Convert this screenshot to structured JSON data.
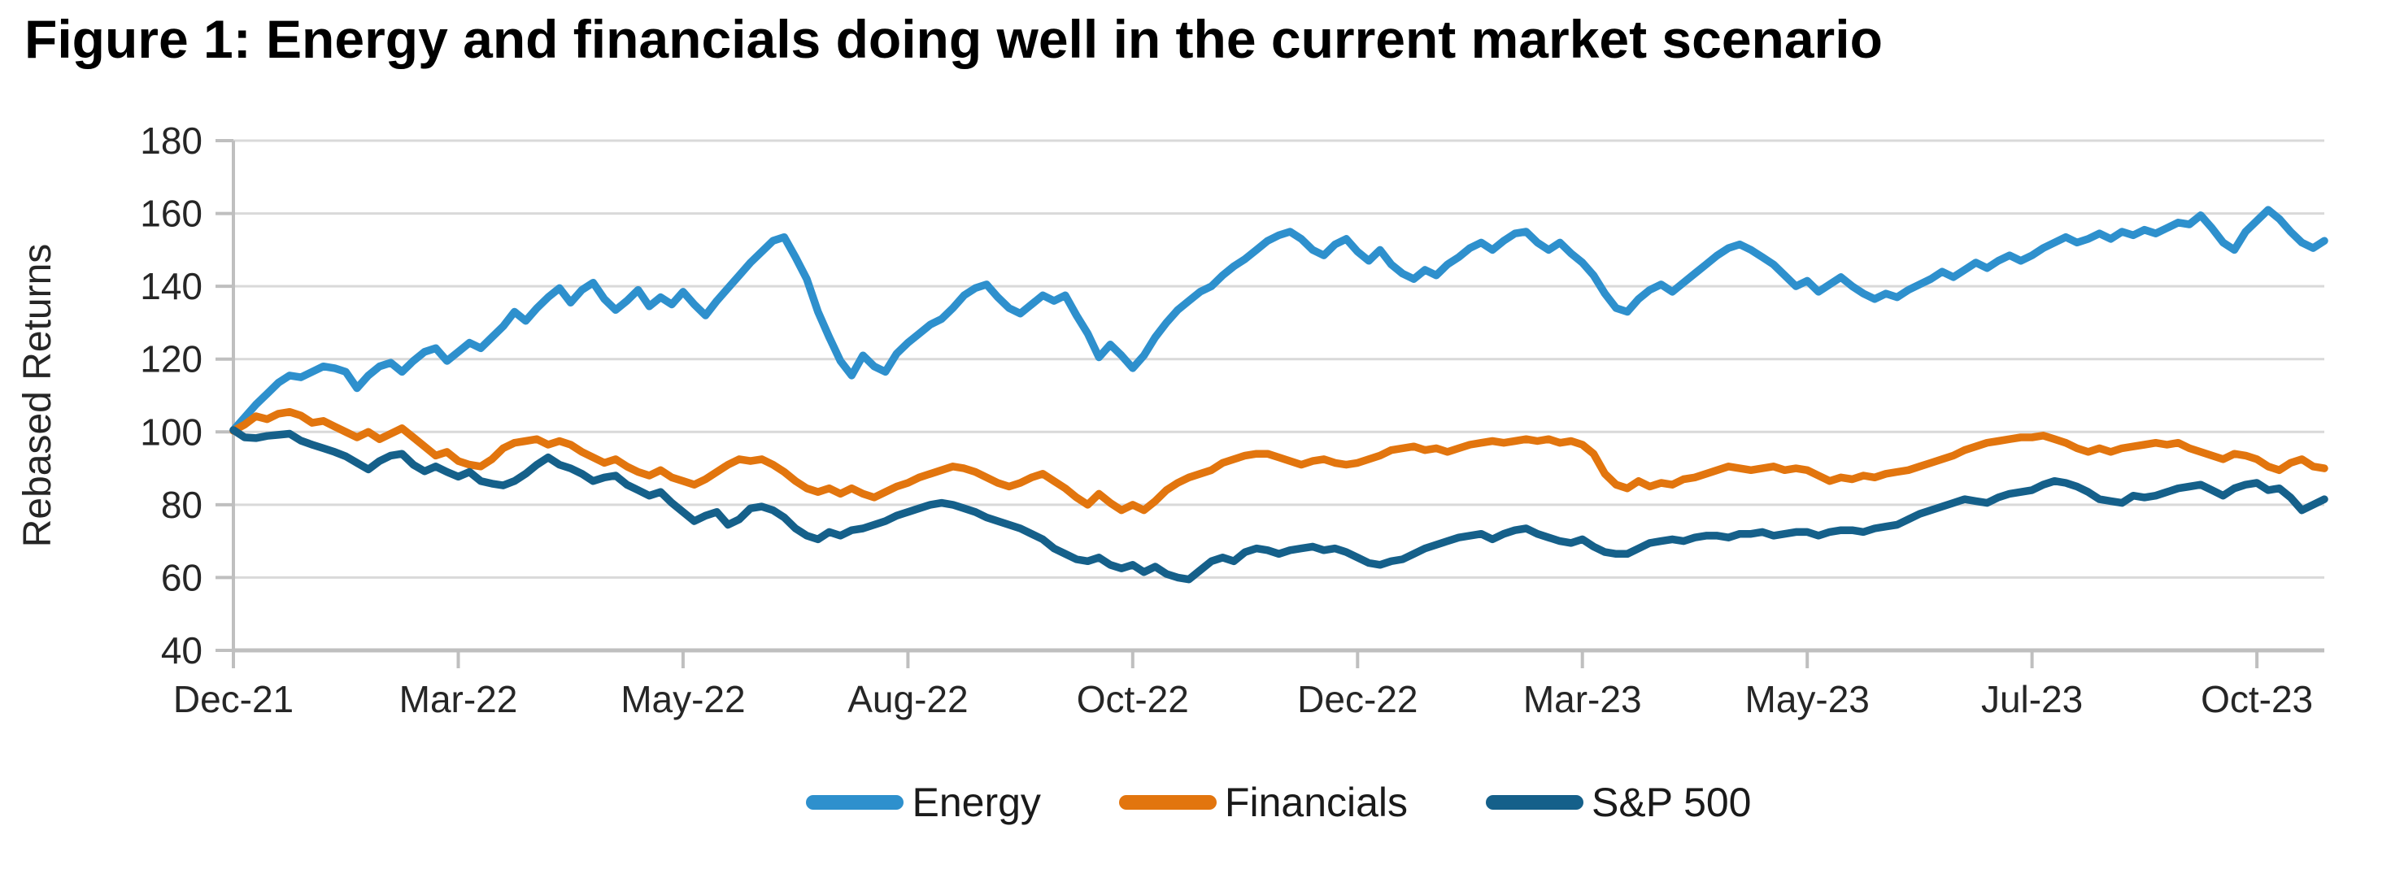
{
  "figure": {
    "title": "Figure 1: Energy and financials doing well in the current market scenario"
  },
  "chart_data": {
    "type": "line",
    "title": "Figure 1: Energy and financials doing well in the current market scenario",
    "xlabel": "",
    "ylabel": "Rebased Returns",
    "ylim": [
      40,
      180
    ],
    "yticks": [
      180,
      160,
      140,
      120,
      100,
      80,
      60,
      40
    ],
    "xticklabels": [
      "Dec-21",
      "Mar-22",
      "May-22",
      "Aug-22",
      "Oct-22",
      "Dec-22",
      "Mar-23",
      "May-23",
      "Jul-23",
      "Oct-23"
    ],
    "grid": true,
    "legend_position": "bottom",
    "colors": {
      "grid": "#D9D9D9",
      "axis": "#BFBFBF",
      "tick_text": "#262626",
      "energy": "#2E90CD",
      "financials": "#E2750E",
      "sp500": "#15608A"
    },
    "series": [
      {
        "name": "Energy",
        "color": "#2E90CD",
        "values": [
          100.5,
          104,
          107.5,
          110.5,
          113.5,
          115.5,
          115,
          116.5,
          118,
          117.5,
          116.5,
          112,
          115.5,
          118,
          119,
          116.5,
          119.5,
          122,
          123,
          119.5,
          122,
          124.5,
          123,
          126,
          129,
          133,
          130.5,
          134,
          137,
          139.5,
          135.5,
          139,
          141,
          136.5,
          133.5,
          136,
          139,
          134.5,
          137,
          135,
          138.5,
          135,
          132,
          136,
          139.5,
          143,
          146.5,
          149.5,
          152.5,
          153.5,
          148,
          142,
          133,
          126,
          119.5,
          115.5,
          121,
          118,
          116.5,
          121.5,
          124.5,
          127,
          129.5,
          131,
          134,
          137.5,
          139.5,
          140.5,
          137,
          134,
          132.5,
          135,
          137.5,
          136,
          137.5,
          132,
          127,
          120.5,
          124,
          121,
          117.5,
          121,
          126,
          130,
          133.5,
          136,
          138.5,
          140,
          143,
          145.5,
          147.5,
          150,
          152.5,
          154,
          155,
          153,
          150,
          148.5,
          151.5,
          153,
          149.5,
          147,
          150,
          146,
          143.5,
          142,
          144.5,
          143,
          146,
          148,
          150.5,
          152,
          150,
          152.5,
          154.5,
          155,
          152,
          150,
          152,
          149,
          146.5,
          143,
          138,
          134,
          133,
          136.5,
          139,
          140.5,
          138.5,
          141,
          143.5,
          146,
          148.5,
          150.5,
          151.5,
          150,
          148,
          146,
          143,
          140,
          141.5,
          138.5,
          140.5,
          142.5,
          140,
          138,
          136.5,
          138,
          137,
          139,
          140.5,
          142,
          144,
          142.5,
          144.5,
          146.5,
          145,
          147,
          148.5,
          147,
          148.5,
          150.5,
          152,
          153.5,
          152,
          153,
          154.5,
          153,
          155,
          154,
          155.5,
          154.5,
          156,
          157.5,
          157,
          159.5,
          156,
          152,
          150,
          155,
          158,
          161,
          158.5,
          155,
          152,
          150.5,
          152.5
        ]
      },
      {
        "name": "Financials",
        "color": "#E2750E",
        "values": [
          100.3,
          102,
          104.3,
          103.5,
          105,
          105.5,
          104.5,
          102.5,
          103,
          101.5,
          100,
          98.5,
          100,
          98,
          99.5,
          101,
          98.5,
          96,
          93.5,
          94.5,
          92,
          91,
          90.5,
          92.5,
          95.5,
          97,
          97.5,
          98,
          96.5,
          97.5,
          96.5,
          94.5,
          93,
          91.5,
          92.5,
          90.5,
          89,
          88,
          89.5,
          87.5,
          86.5,
          85.5,
          87,
          89,
          91,
          92.5,
          92,
          92.5,
          91,
          89,
          86.5,
          84.5,
          83.5,
          84.5,
          83,
          84.5,
          83,
          82,
          83.5,
          85,
          86,
          87.5,
          88.5,
          89.5,
          90.5,
          90,
          89,
          87.5,
          86,
          85,
          86,
          87.5,
          88.5,
          86.5,
          84.5,
          82,
          80,
          83,
          80.5,
          78.5,
          80,
          78.5,
          81,
          84,
          86,
          87.5,
          88.5,
          89.5,
          91.5,
          92.5,
          93.5,
          94,
          94,
          93,
          92,
          91,
          92,
          92.5,
          91.5,
          91,
          91.5,
          92.5,
          93.5,
          95,
          95.5,
          96,
          95,
          95.5,
          94.5,
          95.5,
          96.5,
          97,
          97.5,
          97,
          97.5,
          98,
          97.5,
          98,
          97,
          97.5,
          96.5,
          94,
          88.5,
          85.5,
          84.5,
          86.5,
          85,
          86,
          85.5,
          87,
          87.5,
          88.5,
          89.5,
          90.5,
          90,
          89.5,
          90,
          90.5,
          89.5,
          90,
          89.5,
          88,
          86.5,
          87.5,
          87,
          88,
          87.5,
          88.5,
          89,
          89.5,
          90.5,
          91.5,
          92.5,
          93.5,
          95,
          96,
          97,
          97.5,
          98,
          98.5,
          98.5,
          99,
          98,
          97,
          95.5,
          94.5,
          95.5,
          94.5,
          95.5,
          96,
          96.5,
          97,
          96.5,
          97,
          95.5,
          94.5,
          93.5,
          92.5,
          94,
          93.5,
          92.5,
          90.5,
          89.5,
          91.5,
          92.5,
          90.5,
          90
        ]
      },
      {
        "name": "S&P 500",
        "color": "#15608A",
        "values": [
          100.5,
          98.5,
          98.3,
          98.9,
          99.2,
          99.5,
          97.6,
          96.5,
          95.5,
          94.5,
          93.3,
          91.5,
          89.7,
          92,
          93.5,
          94,
          91,
          89.2,
          90.5,
          89,
          87.7,
          89,
          86.5,
          85.8,
          85.3,
          86.5,
          88.5,
          91,
          93,
          91,
          90,
          88.5,
          86.5,
          87.5,
          88,
          85.5,
          84,
          82.5,
          83.5,
          80.5,
          78,
          75.5,
          77,
          78,
          74.5,
          76,
          79,
          79.5,
          78.5,
          76.5,
          73.5,
          71.5,
          70.5,
          72.5,
          71.5,
          73,
          73.5,
          74.5,
          75.5,
          77,
          78,
          79,
          80,
          80.5,
          80,
          79,
          78,
          76.5,
          75.5,
          74.5,
          73.5,
          72,
          70.5,
          68,
          66.5,
          65,
          64.5,
          65.5,
          63.5,
          62.5,
          63.5,
          61.5,
          63,
          61,
          60,
          59.5,
          62,
          64.5,
          65.5,
          64.5,
          67,
          68,
          67.5,
          66.5,
          67.5,
          68,
          68.5,
          67.5,
          68,
          67,
          65.5,
          64,
          63.5,
          64.5,
          65,
          66.5,
          68,
          69,
          70,
          71,
          71.5,
          72,
          70.5,
          72,
          73,
          73.5,
          72,
          71,
          70,
          69.5,
          70.5,
          68.5,
          67,
          66.5,
          66.5,
          68,
          69.5,
          70,
          70.5,
          70,
          71,
          71.5,
          71.5,
          71,
          72,
          72,
          72.5,
          71.5,
          72,
          72.5,
          72.5,
          71.5,
          72.5,
          73,
          73,
          72.5,
          73.5,
          74,
          74.5,
          76,
          77.5,
          78.5,
          79.5,
          80.5,
          81.5,
          81,
          80.5,
          82,
          83,
          83.5,
          84,
          85.5,
          86.5,
          86,
          85,
          83.5,
          81.5,
          81,
          80.5,
          82.5,
          82,
          82.5,
          83.5,
          84.5,
          85,
          85.5,
          84,
          82.5,
          84.5,
          85.5,
          86,
          84,
          84.5,
          82,
          78.5,
          80,
          81.5
        ]
      }
    ]
  }
}
